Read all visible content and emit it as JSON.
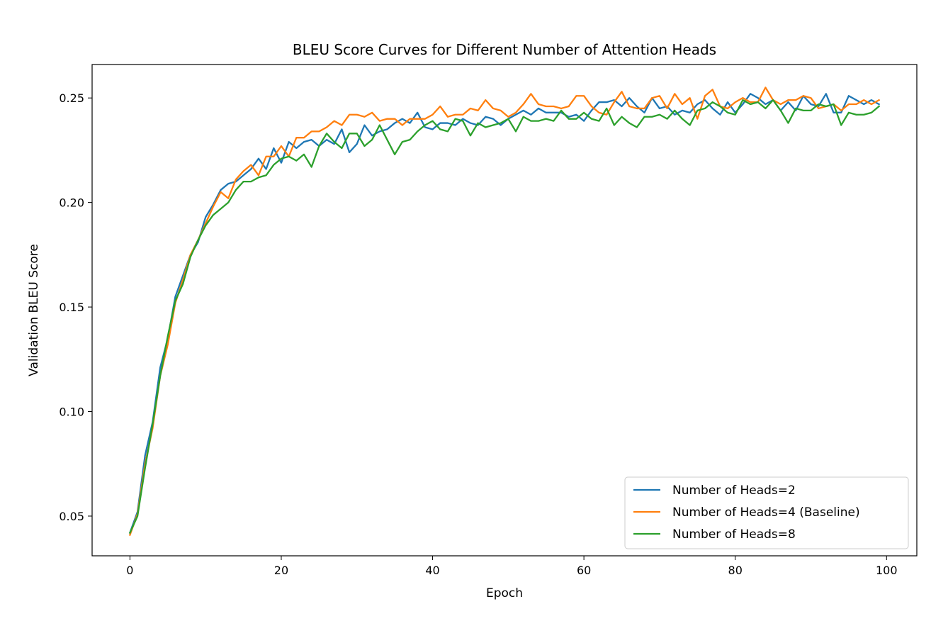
{
  "chart_data": {
    "type": "line",
    "title": "BLEU Score Curves for Different Number of Attention Heads",
    "xlabel": "Epoch",
    "ylabel": "Validation BLEU Score",
    "xlim": [
      -5,
      104
    ],
    "ylim": [
      0.031,
      0.266
    ],
    "xticks": [
      0,
      20,
      40,
      60,
      80,
      100
    ],
    "yticks": [
      0.05,
      0.1,
      0.15,
      0.2,
      0.25
    ],
    "ytick_labels": [
      "0.05",
      "0.10",
      "0.15",
      "0.20",
      "0.25"
    ],
    "grid": false,
    "legend_position": "bottom-right",
    "series": [
      {
        "name": "Number of Heads=2",
        "color": "#1f77b4",
        "values": [
          0.042,
          0.052,
          0.079,
          0.095,
          0.121,
          0.135,
          0.155,
          0.165,
          0.175,
          0.181,
          0.193,
          0.199,
          0.206,
          0.209,
          0.21,
          0.213,
          0.216,
          0.221,
          0.216,
          0.226,
          0.219,
          0.229,
          0.226,
          0.229,
          0.23,
          0.227,
          0.23,
          0.228,
          0.235,
          0.224,
          0.228,
          0.237,
          0.232,
          0.234,
          0.235,
          0.238,
          0.24,
          0.238,
          0.243,
          0.236,
          0.235,
          0.238,
          0.238,
          0.237,
          0.24,
          0.238,
          0.237,
          0.241,
          0.24,
          0.237,
          0.24,
          0.242,
          0.244,
          0.242,
          0.245,
          0.243,
          0.243,
          0.243,
          0.241,
          0.242,
          0.239,
          0.244,
          0.248,
          0.248,
          0.249,
          0.246,
          0.25,
          0.246,
          0.243,
          0.25,
          0.245,
          0.246,
          0.242,
          0.244,
          0.243,
          0.247,
          0.249,
          0.245,
          0.242,
          0.248,
          0.243,
          0.247,
          0.252,
          0.25,
          0.247,
          0.249,
          0.244,
          0.248,
          0.244,
          0.251,
          0.247,
          0.246,
          0.252,
          0.243,
          0.243,
          0.251,
          0.249,
          0.247,
          0.249,
          0.247
        ]
      },
      {
        "name": "Number of Heads=4 (Baseline)",
        "color": "#ff7f0e",
        "values": [
          0.041,
          0.051,
          0.075,
          0.092,
          0.117,
          0.132,
          0.152,
          0.163,
          0.175,
          0.182,
          0.19,
          0.198,
          0.205,
          0.202,
          0.211,
          0.215,
          0.218,
          0.213,
          0.222,
          0.222,
          0.227,
          0.222,
          0.231,
          0.231,
          0.234,
          0.234,
          0.236,
          0.239,
          0.237,
          0.242,
          0.242,
          0.241,
          0.243,
          0.239,
          0.24,
          0.24,
          0.237,
          0.24,
          0.24,
          0.24,
          0.242,
          0.246,
          0.241,
          0.242,
          0.242,
          0.245,
          0.244,
          0.249,
          0.245,
          0.244,
          0.241,
          0.243,
          0.247,
          0.252,
          0.247,
          0.246,
          0.246,
          0.245,
          0.246,
          0.251,
          0.251,
          0.246,
          0.243,
          0.242,
          0.248,
          0.253,
          0.246,
          0.245,
          0.245,
          0.25,
          0.251,
          0.245,
          0.252,
          0.247,
          0.25,
          0.24,
          0.251,
          0.254,
          0.246,
          0.245,
          0.248,
          0.25,
          0.248,
          0.248,
          0.255,
          0.249,
          0.247,
          0.249,
          0.249,
          0.251,
          0.25,
          0.245,
          0.246,
          0.247,
          0.244,
          0.247,
          0.247,
          0.249,
          0.247,
          0.249
        ]
      },
      {
        "name": "Number of Heads=8",
        "color": "#2ca02c",
        "values": [
          0.042,
          0.05,
          0.073,
          0.094,
          0.117,
          0.136,
          0.153,
          0.161,
          0.174,
          0.182,
          0.189,
          0.194,
          0.197,
          0.2,
          0.206,
          0.21,
          0.21,
          0.212,
          0.213,
          0.218,
          0.221,
          0.222,
          0.22,
          0.223,
          0.217,
          0.227,
          0.233,
          0.229,
          0.226,
          0.233,
          0.233,
          0.227,
          0.23,
          0.237,
          0.23,
          0.223,
          0.229,
          0.23,
          0.234,
          0.237,
          0.239,
          0.235,
          0.234,
          0.24,
          0.239,
          0.232,
          0.238,
          0.236,
          0.237,
          0.238,
          0.24,
          0.234,
          0.241,
          0.239,
          0.239,
          0.24,
          0.239,
          0.244,
          0.24,
          0.24,
          0.243,
          0.24,
          0.239,
          0.245,
          0.237,
          0.241,
          0.238,
          0.236,
          0.241,
          0.241,
          0.242,
          0.24,
          0.244,
          0.24,
          0.237,
          0.244,
          0.245,
          0.248,
          0.246,
          0.243,
          0.242,
          0.249,
          0.247,
          0.248,
          0.245,
          0.249,
          0.244,
          0.238,
          0.245,
          0.244,
          0.244,
          0.247,
          0.246,
          0.247,
          0.237,
          0.243,
          0.242,
          0.242,
          0.243,
          0.246
        ]
      }
    ]
  }
}
